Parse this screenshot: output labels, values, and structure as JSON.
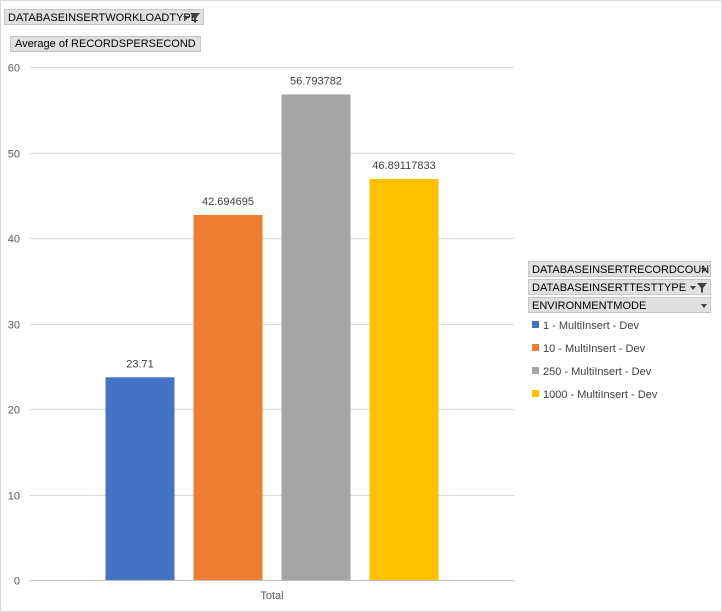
{
  "filter_buttons": {
    "workload_type": "DATABASEINSERTWORKLOADTYPE",
    "value_field": "Average of RECORDSPERSECOND",
    "record_count": "DATABASEINSERTRECORDCOUNT",
    "test_type": "DATABASEINSERTTESTTYPE",
    "environment_mode": "ENVIRONMENTMODE"
  },
  "icons": {
    "workload_type": [
      "dropdown-icon",
      "filter-icon"
    ],
    "record_count": [
      "dropdown-icon"
    ],
    "test_type": [
      "dropdown-icon",
      "filter-icon"
    ],
    "environment_mode": [
      "dropdown-icon"
    ]
  },
  "chart_data": {
    "type": "bar",
    "categories": [
      "Total"
    ],
    "series": [
      {
        "name": "1 - MultiInsert - Dev",
        "values": [
          23.71
        ],
        "label": "23.71",
        "color": "#4472C4"
      },
      {
        "name": "10 - MultiInsert - Dev",
        "values": [
          42.694695
        ],
        "label": "42.694695",
        "color": "#ED7D31"
      },
      {
        "name": "250 - MultiInsert - Dev",
        "values": [
          56.793782
        ],
        "label": "56.793782",
        "color": "#A5A5A5"
      },
      {
        "name": "1000 - MultiInsert - Dev",
        "values": [
          46.89117833
        ],
        "label": "46.89117833",
        "color": "#FFC000"
      }
    ],
    "yticks": [
      "0",
      "10",
      "20",
      "30",
      "40",
      "50",
      "60"
    ],
    "ylim": [
      0,
      60
    ],
    "grid": true,
    "legend": "right"
  }
}
